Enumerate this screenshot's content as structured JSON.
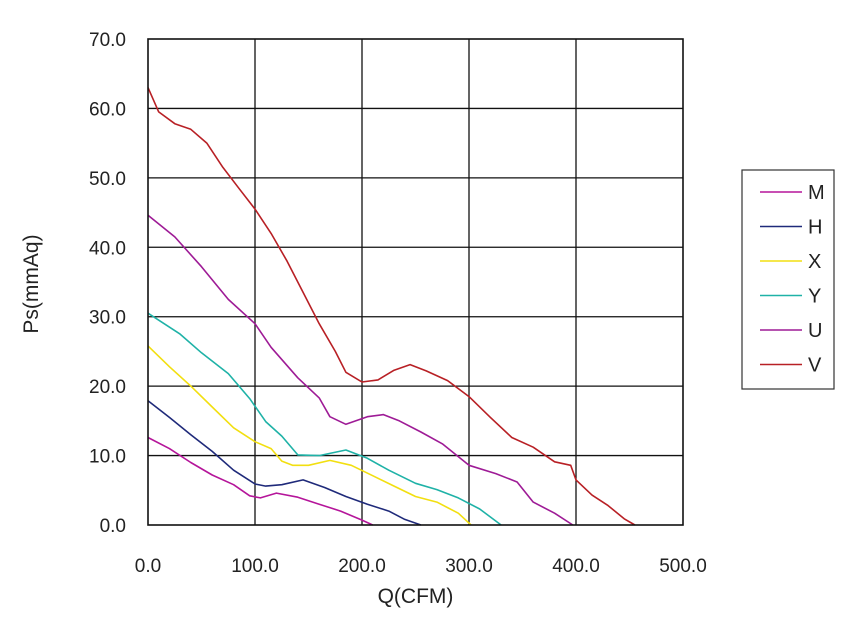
{
  "chart_data": {
    "type": "line",
    "title": "",
    "xlabel": "Q(CFM)",
    "ylabel": "Ps(mmAq)",
    "xlim": [
      0,
      500
    ],
    "ylim": [
      0,
      70
    ],
    "x_ticks": [
      "0.0",
      "100.0",
      "200.0",
      "300.0",
      "400.0",
      "500.0"
    ],
    "y_ticks": [
      "0.0",
      "10.0",
      "20.0",
      "30.0",
      "40.0",
      "50.0",
      "60.0",
      "70.0"
    ],
    "grid": true,
    "legend_position": "right",
    "series": [
      {
        "name": "M",
        "color": "#b5159a",
        "x": [
          0,
          20,
          40,
          60,
          80,
          95,
          105,
          120,
          140,
          160,
          180,
          200,
          210
        ],
        "y": [
          12.6,
          11,
          9,
          7.2,
          5.8,
          4.2,
          3.9,
          4.6,
          4.0,
          3.0,
          2.0,
          0.7,
          0
        ]
      },
      {
        "name": "H",
        "color": "#1f2a7a",
        "x": [
          0,
          20,
          40,
          60,
          80,
          100,
          110,
          125,
          145,
          165,
          185,
          205,
          225,
          240,
          255
        ],
        "y": [
          17.9,
          15.5,
          13,
          10.6,
          7.9,
          5.9,
          5.6,
          5.8,
          6.5,
          5.4,
          4.1,
          3.0,
          2.0,
          0.8,
          0
        ]
      },
      {
        "name": "X",
        "color": "#f2df10",
        "x": [
          0,
          20,
          40,
          60,
          80,
          100,
          115,
          125,
          135,
          150,
          170,
          190,
          210,
          230,
          250,
          270,
          290,
          302
        ],
        "y": [
          25.8,
          22.8,
          20,
          17,
          14,
          12.0,
          11.0,
          9.2,
          8.6,
          8.6,
          9.3,
          8.6,
          7.1,
          5.6,
          4.1,
          3.3,
          1.7,
          0
        ]
      },
      {
        "name": "Y",
        "color": "#1fb2a7",
        "x": [
          0,
          30,
          50,
          75,
          95,
          110,
          125,
          140,
          160,
          185,
          205,
          225,
          250,
          270,
          290,
          310,
          330
        ],
        "y": [
          30.5,
          27.5,
          24.8,
          21.8,
          18.2,
          14.9,
          12.8,
          10.1,
          10.0,
          10.8,
          9.6,
          7.9,
          6.0,
          5.1,
          3.9,
          2.3,
          0
        ]
      },
      {
        "name": "U",
        "color": "#9e1b96",
        "x": [
          0,
          25,
          50,
          75,
          100,
          115,
          140,
          160,
          170,
          185,
          205,
          220,
          235,
          255,
          275,
          300,
          325,
          345,
          360,
          380,
          397
        ],
        "y": [
          44.6,
          41.5,
          37.2,
          32.5,
          29.0,
          25.6,
          21.2,
          18.3,
          15.6,
          14.5,
          15.6,
          15.9,
          15.0,
          13.4,
          11.7,
          8.6,
          7.4,
          6.2,
          3.3,
          1.7,
          0
        ]
      },
      {
        "name": "V",
        "color": "#b82025",
        "x": [
          0,
          10,
          25,
          40,
          55,
          70,
          85,
          100,
          115,
          130,
          145,
          160,
          175,
          185,
          200,
          215,
          230,
          245,
          260,
          280,
          300,
          320,
          340,
          360,
          380,
          395,
          400,
          415,
          430,
          445,
          455
        ],
        "y": [
          63.0,
          59.5,
          57.8,
          57.0,
          55.0,
          51.5,
          48.5,
          45.5,
          42.0,
          38.0,
          33.5,
          29.0,
          25.0,
          22.0,
          20.6,
          20.9,
          22.3,
          23.1,
          22.2,
          20.8,
          18.5,
          15.5,
          12.6,
          11.2,
          9.1,
          8.6,
          6.5,
          4.3,
          2.8,
          0.9,
          0
        ]
      }
    ]
  }
}
